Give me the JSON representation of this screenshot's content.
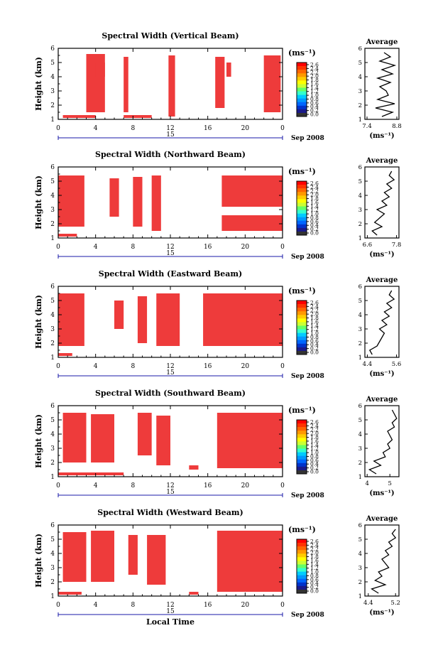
{
  "colorbar": {
    "unit_label": "(ms⁻¹)",
    "tick_labels": [
      "2.6",
      "2.4",
      "2.2",
      "2.0",
      "1.8",
      "1.6",
      "1.4",
      "1.2",
      "1.0",
      "0.8",
      "0.6",
      "0.4",
      "0.2",
      "0.0"
    ],
    "colors": [
      "#ff0000",
      "#ff3300",
      "#ff6600",
      "#ff9900",
      "#ffcc00",
      "#ffff00",
      "#ccff33",
      "#66ff66",
      "#33ffcc",
      "#00ccff",
      "#0099ff",
      "#0066ff",
      "#0033cc",
      "#1a1a8c",
      "#333333"
    ]
  },
  "chart_data": [
    {
      "type": "heatmap",
      "title": "Spectral Width (Vertical Beam)",
      "ylabel": "Height (km)",
      "yticks": [
        "1",
        "2",
        "3",
        "4",
        "5",
        "6"
      ],
      "ylim": [
        1,
        6
      ],
      "xticks": [
        "0",
        "4",
        "8",
        "12",
        "16",
        "20",
        "0"
      ],
      "xlim": [
        0,
        24
      ],
      "date_label": "Sep 2008",
      "day_label": "15",
      "fill_color": "#ee3b3b",
      "blocks": [
        [
          3,
          5,
          1.5,
          5.6
        ],
        [
          4,
          5,
          4,
          5
        ],
        [
          7,
          7.5,
          1.5,
          5.4
        ],
        [
          11.8,
          12.5,
          1.2,
          5.5
        ],
        [
          16.8,
          17.8,
          1.8,
          5.4
        ],
        [
          18,
          18.5,
          4,
          5
        ],
        [
          22,
          23.8,
          1.5,
          5.5
        ],
        [
          0.5,
          4,
          1.1,
          1.3
        ],
        [
          7,
          10,
          1.1,
          1.3
        ]
      ],
      "average": {
        "title": "Average",
        "xlabel": "(ms⁻¹)",
        "xticks": [
          "7.4",
          "8.8"
        ],
        "xlim": [
          7.3,
          8.9
        ],
        "ylim": [
          1,
          6
        ],
        "yticks": [
          "1",
          "2",
          "3",
          "4",
          "5",
          "6"
        ],
        "height_km": [
          1.2,
          1.5,
          1.8,
          2.1,
          2.4,
          2.7,
          3.0,
          3.3,
          3.6,
          3.9,
          4.2,
          4.5,
          4.8,
          5.1,
          5.4,
          5.7
        ],
        "values": [
          8.1,
          8.6,
          7.8,
          8.7,
          7.9,
          8.4,
          8.3,
          8.0,
          8.5,
          7.9,
          8.6,
          8.1,
          8.7,
          8.0,
          8.5,
          8.2
        ]
      }
    },
    {
      "type": "heatmap",
      "title": "Spectral Width (Northward Beam)",
      "ylabel": "Height (km)",
      "yticks": [
        "1",
        "2",
        "3",
        "4",
        "5",
        "6"
      ],
      "ylim": [
        1,
        6
      ],
      "xticks": [
        "0",
        "4",
        "8",
        "12",
        "16",
        "20",
        "0"
      ],
      "xlim": [
        0,
        24
      ],
      "date_label": "Sep 2008",
      "day_label": "15",
      "fill_color": "#ee3b3b",
      "blocks": [
        [
          0,
          2.8,
          1.8,
          5.4
        ],
        [
          5.5,
          6.5,
          2.5,
          5.2
        ],
        [
          8,
          9,
          1.8,
          5.3
        ],
        [
          10,
          11,
          1.5,
          5.4
        ],
        [
          17.5,
          24,
          3.2,
          5.4
        ],
        [
          17.5,
          24,
          1.5,
          2.6
        ],
        [
          0,
          2,
          1.1,
          1.3
        ]
      ],
      "average": {
        "title": "Average",
        "xlabel": "(ms⁻¹)",
        "xticks": [
          "6.6",
          "7.8"
        ],
        "xlim": [
          6.5,
          7.9
        ],
        "ylim": [
          1,
          6
        ],
        "yticks": [
          "1",
          "2",
          "3",
          "4",
          "5",
          "6"
        ],
        "height_km": [
          1.2,
          1.5,
          1.8,
          2.1,
          2.4,
          2.7,
          3.0,
          3.3,
          3.6,
          3.9,
          4.2,
          4.5,
          4.8,
          5.1,
          5.4,
          5.7
        ],
        "values": [
          7.0,
          6.8,
          7.2,
          6.9,
          7.1,
          7.3,
          7.0,
          7.4,
          7.2,
          7.5,
          7.3,
          7.6,
          7.4,
          7.7,
          7.5,
          7.6
        ]
      }
    },
    {
      "type": "heatmap",
      "title": "Spectral Width (Eastward Beam)",
      "ylabel": "Height (km)",
      "yticks": [
        "1",
        "2",
        "3",
        "4",
        "5",
        "6"
      ],
      "ylim": [
        1,
        6
      ],
      "xticks": [
        "0",
        "4",
        "8",
        "12",
        "16",
        "20",
        "0"
      ],
      "xlim": [
        0,
        24
      ],
      "date_label": "Sep 2008",
      "day_label": "15",
      "fill_color": "#ee3b3b",
      "blocks": [
        [
          0,
          2.8,
          1.8,
          5.5
        ],
        [
          6,
          7,
          3,
          5
        ],
        [
          8.5,
          9.5,
          2,
          5.3
        ],
        [
          10.5,
          13,
          1.8,
          5.5
        ],
        [
          15.5,
          24,
          1.8,
          5.5
        ],
        [
          0,
          1.5,
          1.1,
          1.3
        ]
      ],
      "average": {
        "title": "Average",
        "xlabel": "(ms⁻¹)",
        "xticks": [
          "4.4",
          "5.6"
        ],
        "xlim": [
          4.3,
          5.7
        ],
        "ylim": [
          1,
          6
        ],
        "yticks": [
          "1",
          "2",
          "3",
          "4",
          "5",
          "6"
        ],
        "height_km": [
          1.2,
          1.5,
          1.8,
          2.1,
          2.4,
          2.7,
          3.0,
          3.3,
          3.6,
          3.9,
          4.2,
          4.5,
          4.8,
          5.1,
          5.4,
          5.7
        ],
        "values": [
          4.6,
          4.5,
          4.8,
          4.9,
          5.0,
          5.1,
          4.9,
          5.2,
          5.0,
          5.3,
          5.1,
          5.4,
          5.2,
          5.5,
          5.3,
          5.4
        ]
      }
    },
    {
      "type": "heatmap",
      "title": "Spectral Width (Southward Beam)",
      "ylabel": "Height (km)",
      "yticks": [
        "1",
        "2",
        "3",
        "4",
        "5",
        "6"
      ],
      "ylim": [
        1,
        6
      ],
      "xticks": [
        "0",
        "4",
        "8",
        "12",
        "16",
        "20",
        "0"
      ],
      "xlim": [
        0,
        24
      ],
      "date_label": "Sep 2008",
      "day_label": "15",
      "fill_color": "#ee3b3b",
      "blocks": [
        [
          0.5,
          3,
          2,
          5.5
        ],
        [
          3.5,
          6,
          2,
          5.4
        ],
        [
          8.5,
          10,
          2.5,
          5.5
        ],
        [
          10.5,
          12,
          1.8,
          5.3
        ],
        [
          14,
          15,
          1.5,
          1.8
        ],
        [
          17,
          24,
          1.6,
          5.5
        ],
        [
          0,
          7,
          1.1,
          1.3
        ]
      ],
      "average": {
        "title": "Average",
        "xlabel": "(ms⁻¹)",
        "xticks": [
          "4",
          "5"
        ],
        "xlim": [
          3.9,
          5.4
        ],
        "ylim": [
          1,
          6
        ],
        "yticks": [
          "1",
          "2",
          "3",
          "4",
          "5",
          "6"
        ],
        "height_km": [
          1.2,
          1.5,
          1.8,
          2.1,
          2.4,
          2.7,
          3.0,
          3.3,
          3.6,
          3.9,
          4.2,
          4.5,
          4.8,
          5.1,
          5.4,
          5.7
        ],
        "values": [
          4.4,
          4.1,
          4.6,
          4.3,
          4.8,
          4.7,
          5.0,
          4.9,
          5.1,
          5.0,
          4.9,
          5.2,
          5.1,
          5.3,
          5.2,
          5.1
        ]
      }
    },
    {
      "type": "heatmap",
      "title": "Spectral Width (Westward Beam)",
      "ylabel": "Height (km)",
      "yticks": [
        "1",
        "2",
        "3",
        "4",
        "5",
        "6"
      ],
      "ylim": [
        1,
        6
      ],
      "xticks": [
        "0",
        "4",
        "8",
        "12",
        "16",
        "20",
        "0"
      ],
      "xlim": [
        0,
        24
      ],
      "date_label": "Sep 2008",
      "day_label": "15",
      "fill_color": "#ee3b3b",
      "blocks": [
        [
          0.5,
          3,
          2,
          5.5
        ],
        [
          3.5,
          6,
          2,
          5.6
        ],
        [
          7.5,
          8.5,
          2.5,
          5.3
        ],
        [
          9.5,
          11.5,
          1.8,
          5.3
        ],
        [
          17,
          24,
          1.3,
          5.6
        ],
        [
          0,
          2.5,
          1.1,
          1.3
        ],
        [
          14,
          15,
          1.1,
          1.3
        ]
      ],
      "average": {
        "title": "Average",
        "xlabel": "(ms⁻¹)",
        "xticks": [
          "4.4",
          "5.2"
        ],
        "xlim": [
          4.3,
          5.3
        ],
        "ylim": [
          1,
          6
        ],
        "yticks": [
          "1",
          "2",
          "3",
          "4",
          "5",
          "6"
        ],
        "height_km": [
          1.2,
          1.5,
          1.8,
          2.1,
          2.4,
          2.7,
          3.0,
          3.3,
          3.6,
          3.9,
          4.2,
          4.5,
          4.8,
          5.1,
          5.4,
          5.7
        ],
        "values": [
          4.7,
          4.5,
          4.9,
          4.6,
          4.8,
          4.7,
          5.0,
          4.9,
          4.8,
          5.0,
          4.9,
          5.1,
          5.0,
          5.2,
          5.1,
          5.2
        ]
      }
    }
  ],
  "footer": {
    "xlabel": "Local Time"
  }
}
